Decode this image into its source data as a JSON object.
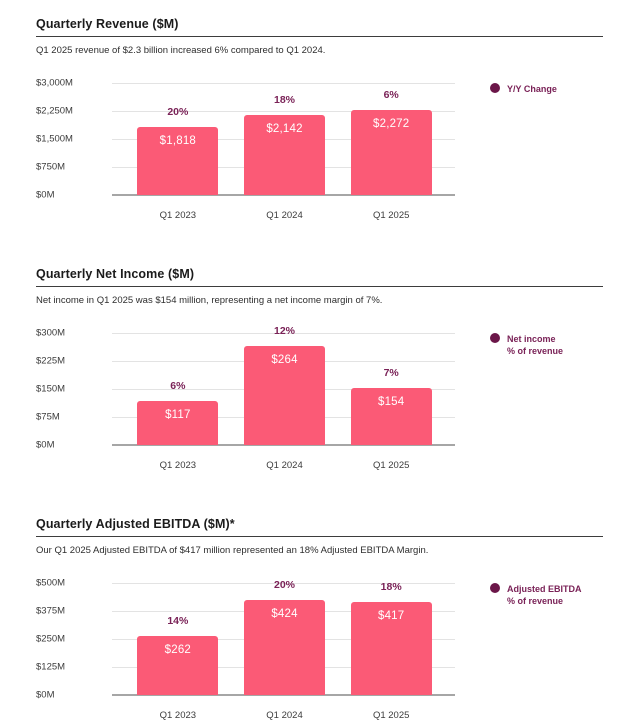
{
  "colors": {
    "bar_fill": "#FB5A76",
    "bar_value_text": "#FFFFFF",
    "pct_label_text": "#7A2257",
    "legend_dot": "#6B1648",
    "legend_text": "#7A2257",
    "title_text": "#1B1B1B",
    "title_rule": "#3D3D3D",
    "subtitle_text": "#2E2E2E",
    "axis_text": "#3C3C3C",
    "gridline": "#E3E3E3",
    "baseline": "#A6A6A6",
    "background": "#FFFFFF"
  },
  "chart_data": [
    {
      "type": "bar",
      "title": "Quarterly Revenue ($M)",
      "subtitle": "Q1 2025 revenue of $2.3 billion increased 6% compared to Q1 2024.",
      "legend": [
        "Y/Y Change"
      ],
      "legend_position": "right",
      "grid": true,
      "categories": [
        "Q1 2023",
        "Q1 2024",
        "Q1 2025"
      ],
      "values": [
        1818,
        2142,
        2272
      ],
      "value_labels": [
        "$1,818",
        "$2,142",
        "$2,272"
      ],
      "pct_labels": [
        "20%",
        "18%",
        "6%"
      ],
      "ylim": [
        0,
        3000
      ],
      "yticks": [
        "$3,000M",
        "$2,250M",
        "$1,500M",
        "$750M",
        "$0M"
      ],
      "xlabel": "",
      "ylabel": ""
    },
    {
      "type": "bar",
      "title": "Quarterly Net Income ($M)",
      "subtitle": "Net income in Q1 2025 was $154 million, representing a net income margin of 7%.",
      "legend": [
        "Net income",
        "% of revenue"
      ],
      "legend_position": "right",
      "grid": true,
      "categories": [
        "Q1 2023",
        "Q1 2024",
        "Q1 2025"
      ],
      "values": [
        117,
        264,
        154
      ],
      "value_labels": [
        "$117",
        "$264",
        "$154"
      ],
      "pct_labels": [
        "6%",
        "12%",
        "7%"
      ],
      "ylim": [
        0,
        300
      ],
      "yticks": [
        "$300M",
        "$225M",
        "$150M",
        "$75M",
        "$0M"
      ],
      "xlabel": "",
      "ylabel": ""
    },
    {
      "type": "bar",
      "title": "Quarterly Adjusted EBITDA ($M)*",
      "subtitle": "Our Q1 2025 Adjusted EBITDA of $417 million represented an 18% Adjusted EBITDA Margin.",
      "legend": [
        "Adjusted EBITDA",
        "% of revenue"
      ],
      "legend_position": "right",
      "grid": true,
      "categories": [
        "Q1 2023",
        "Q1 2024",
        "Q1 2025"
      ],
      "values": [
        262,
        424,
        417
      ],
      "value_labels": [
        "$262",
        "$424",
        "$417"
      ],
      "pct_labels": [
        "14%",
        "20%",
        "18%"
      ],
      "ylim": [
        0,
        500
      ],
      "yticks": [
        "$500M",
        "$375M",
        "$250M",
        "$125M",
        "$0M"
      ],
      "xlabel": "",
      "ylabel": ""
    }
  ]
}
